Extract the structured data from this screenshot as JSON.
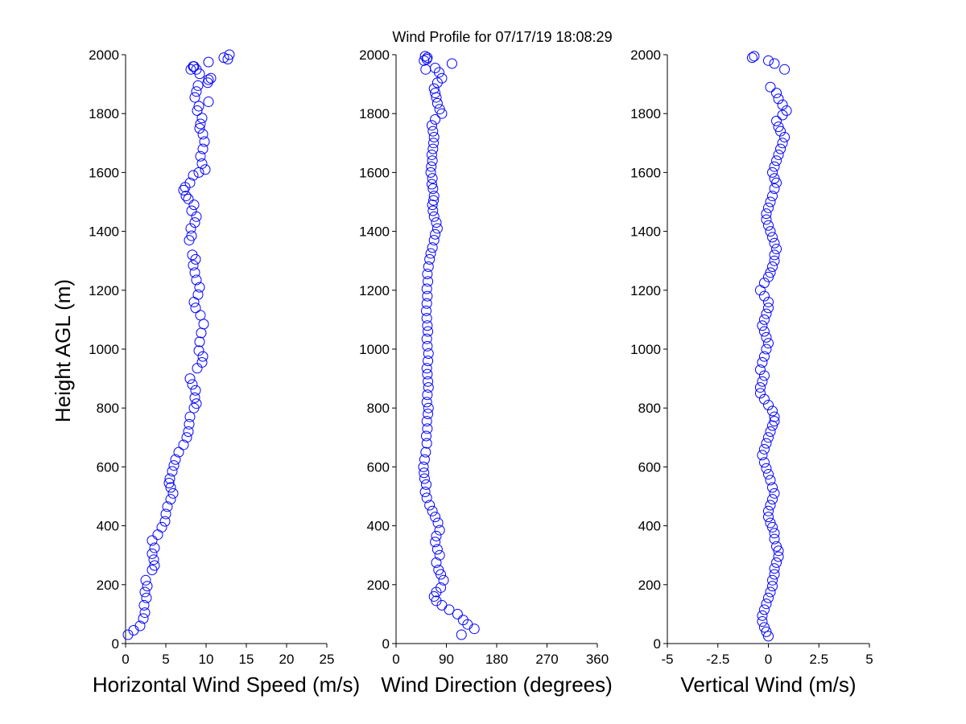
{
  "chart_data": {
    "title": "Wind Profile for  07/17/19 18:08:29",
    "ylabel": "Height AGL (m)",
    "marker_color": "#0000ff",
    "panels": [
      {
        "type": "scatter",
        "xlabel": "Horizontal Wind Speed (m/s)",
        "xlim": [
          0,
          25
        ],
        "xticks": [
          "0",
          "5",
          "10",
          "15",
          "20",
          "25"
        ],
        "ylim": [
          0,
          2000
        ],
        "yticks": [
          "0",
          "200",
          "400",
          "600",
          "800",
          "1000",
          "1200",
          "1400",
          "1600",
          "1800",
          "2000"
        ],
        "points": {
          "x": [
            0.3,
            1.0,
            1.8,
            2.2,
            2.4,
            2.3,
            2.6,
            2.4,
            2.7,
            2.5,
            3.3,
            3.6,
            3.5,
            3.3,
            3.6,
            3.3,
            4.0,
            4.5,
            4.9,
            5.0,
            5.2,
            5.6,
            5.9,
            5.6,
            5.4,
            5.5,
            5.8,
            6.0,
            6.2,
            6.6,
            7.2,
            7.6,
            7.8,
            7.9,
            8.0,
            8.5,
            8.8,
            8.6,
            8.7,
            8.3,
            8.0,
            8.9,
            9.5,
            9.6,
            9.1,
            9.2,
            9.4,
            9.7,
            9.3,
            8.7,
            8.5,
            9.0,
            9.2,
            8.8,
            8.6,
            8.4,
            8.7,
            8.3,
            7.9,
            8.2,
            8.1,
            8.6,
            8.8,
            8.2,
            8.5,
            7.8,
            7.5,
            7.2,
            7.4,
            8.0,
            8.4,
            9.1,
            9.9,
            9.5,
            9.3,
            9.6,
            9.8,
            9.6,
            9.2,
            9.3,
            9.5,
            8.9,
            9.1,
            10.3,
            8.6,
            8.8,
            9.0,
            10.2,
            10.3,
            10.6,
            9.2,
            8.8,
            8.4,
            12.2,
            12.9,
            12.7,
            10.3,
            8.5,
            8.1
          ],
          "y": [
            30,
            45,
            60,
            85,
            105,
            130,
            155,
            175,
            195,
            215,
            250,
            265,
            285,
            305,
            325,
            350,
            370,
            395,
            415,
            440,
            465,
            490,
            510,
            530,
            545,
            560,
            585,
            605,
            625,
            650,
            675,
            700,
            720,
            745,
            770,
            800,
            815,
            835,
            860,
            880,
            900,
            935,
            955,
            975,
            995,
            1025,
            1055,
            1085,
            1115,
            1140,
            1160,
            1185,
            1210,
            1235,
            1260,
            1285,
            1305,
            1320,
            1370,
            1385,
            1410,
            1430,
            1450,
            1470,
            1490,
            1510,
            1520,
            1540,
            1550,
            1565,
            1590,
            1600,
            1610,
            1630,
            1655,
            1680,
            1705,
            1730,
            1750,
            1765,
            1785,
            1810,
            1825,
            1840,
            1855,
            1875,
            1895,
            1905,
            1915,
            1920,
            1935,
            1950,
            1960,
            1990,
            2000,
            1985,
            1975,
            1960,
            1950
          ]
        }
      },
      {
        "type": "scatter",
        "xlabel": "Wind Direction (degrees)",
        "xlim": [
          0,
          360
        ],
        "xticks": [
          "0",
          "90",
          "180",
          "270",
          "360"
        ],
        "ylim": [
          0,
          2000
        ],
        "yticks": [
          "0",
          "200",
          "400",
          "600",
          "800",
          "1000",
          "1200",
          "1400",
          "1600",
          "1800",
          "2000"
        ],
        "points": {
          "x": [
            117,
            140,
            128,
            120,
            110,
            95,
            82,
            72,
            68,
            72,
            80,
            85,
            80,
            76,
            72,
            78,
            74,
            70,
            72,
            78,
            75,
            70,
            65,
            60,
            55,
            52,
            54,
            51,
            50,
            49,
            51,
            53,
            55,
            54,
            56,
            55,
            57,
            58,
            55,
            56,
            58,
            57,
            56,
            55,
            57,
            58,
            56,
            55,
            57,
            56,
            55,
            54,
            55,
            56,
            55,
            57,
            56,
            58,
            60,
            62,
            65,
            68,
            70,
            74,
            72,
            68,
            66,
            65,
            67,
            68,
            66,
            64,
            65,
            62,
            63,
            65,
            64,
            66,
            67,
            68,
            66,
            64,
            70,
            82,
            78,
            74,
            72,
            70,
            68,
            74,
            82,
            77,
            70,
            100,
            55,
            52,
            56,
            50,
            53
          ],
          "y": [
            30,
            50,
            65,
            80,
            100,
            115,
            130,
            145,
            160,
            175,
            190,
            215,
            235,
            250,
            275,
            300,
            320,
            345,
            365,
            385,
            410,
            430,
            450,
            470,
            495,
            515,
            540,
            560,
            580,
            600,
            625,
            650,
            680,
            705,
            730,
            755,
            780,
            800,
            820,
            845,
            870,
            890,
            915,
            935,
            960,
            985,
            1010,
            1035,
            1060,
            1080,
            1105,
            1130,
            1155,
            1180,
            1205,
            1230,
            1255,
            1280,
            1305,
            1325,
            1345,
            1370,
            1390,
            1410,
            1430,
            1450,
            1470,
            1490,
            1505,
            1520,
            1545,
            1560,
            1580,
            1600,
            1620,
            1640,
            1660,
            1680,
            1700,
            1720,
            1740,
            1760,
            1780,
            1800,
            1815,
            1835,
            1855,
            1870,
            1885,
            1905,
            1920,
            1940,
            1955,
            1970,
            1985,
            1995,
            1990,
            1980,
            1950
          ]
        }
      },
      {
        "type": "scatter",
        "xlabel": "Vertical Wind (m/s)",
        "xlim": [
          -5,
          5
        ],
        "xticks": [
          "-5",
          "-2.5",
          "0",
          "2.5",
          "5"
        ],
        "ylim": [
          0,
          2000
        ],
        "yticks": [
          "0",
          "200",
          "400",
          "600",
          "800",
          "1000",
          "1200",
          "1400",
          "1600",
          "1800",
          "2000"
        ],
        "points": {
          "x": [
            0.0,
            -0.1,
            -0.2,
            -0.3,
            -0.3,
            -0.2,
            -0.1,
            0.0,
            0.1,
            0.2,
            0.2,
            0.3,
            0.3,
            0.4,
            0.5,
            0.5,
            0.4,
            0.3,
            0.3,
            0.2,
            0.1,
            0.0,
            0.0,
            0.1,
            0.2,
            0.3,
            0.2,
            0.1,
            0.0,
            -0.1,
            -0.2,
            -0.3,
            -0.2,
            -0.1,
            0.0,
            0.1,
            0.2,
            0.3,
            0.3,
            0.2,
            0.0,
            -0.2,
            -0.4,
            -0.4,
            -0.3,
            -0.2,
            -0.4,
            -0.3,
            -0.2,
            -0.1,
            0.0,
            -0.1,
            -0.2,
            -0.3,
            -0.2,
            -0.1,
            0.0,
            0.0,
            -0.2,
            -0.4,
            -0.2,
            0.0,
            0.1,
            0.2,
            0.3,
            0.3,
            0.4,
            0.3,
            0.2,
            0.1,
            0.0,
            -0.1,
            -0.1,
            0.0,
            0.1,
            0.2,
            0.3,
            0.4,
            0.3,
            0.2,
            0.3,
            0.4,
            0.5,
            0.6,
            0.7,
            0.8,
            0.6,
            0.5,
            0.4,
            0.7,
            0.9,
            0.7,
            0.5,
            0.4,
            0.1,
            -0.8,
            -0.7,
            0.0,
            0.3,
            0.8
          ],
          "y": [
            25,
            40,
            55,
            75,
            95,
            115,
            135,
            155,
            175,
            195,
            215,
            235,
            255,
            275,
            295,
            315,
            330,
            355,
            375,
            395,
            410,
            430,
            450,
            470,
            490,
            510,
            530,
            555,
            575,
            595,
            615,
            640,
            660,
            680,
            700,
            720,
            740,
            755,
            770,
            790,
            810,
            830,
            850,
            870,
            890,
            910,
            930,
            955,
            975,
            1000,
            1020,
            1040,
            1060,
            1080,
            1100,
            1120,
            1140,
            1160,
            1180,
            1200,
            1225,
            1245,
            1260,
            1280,
            1300,
            1320,
            1340,
            1360,
            1380,
            1400,
            1420,
            1440,
            1460,
            1480,
            1500,
            1520,
            1545,
            1565,
            1580,
            1600,
            1620,
            1640,
            1660,
            1680,
            1700,
            1720,
            1740,
            1755,
            1775,
            1795,
            1810,
            1830,
            1850,
            1870,
            1890,
            1990,
            1995,
            1980,
            1970,
            1950
          ]
        }
      }
    ]
  }
}
